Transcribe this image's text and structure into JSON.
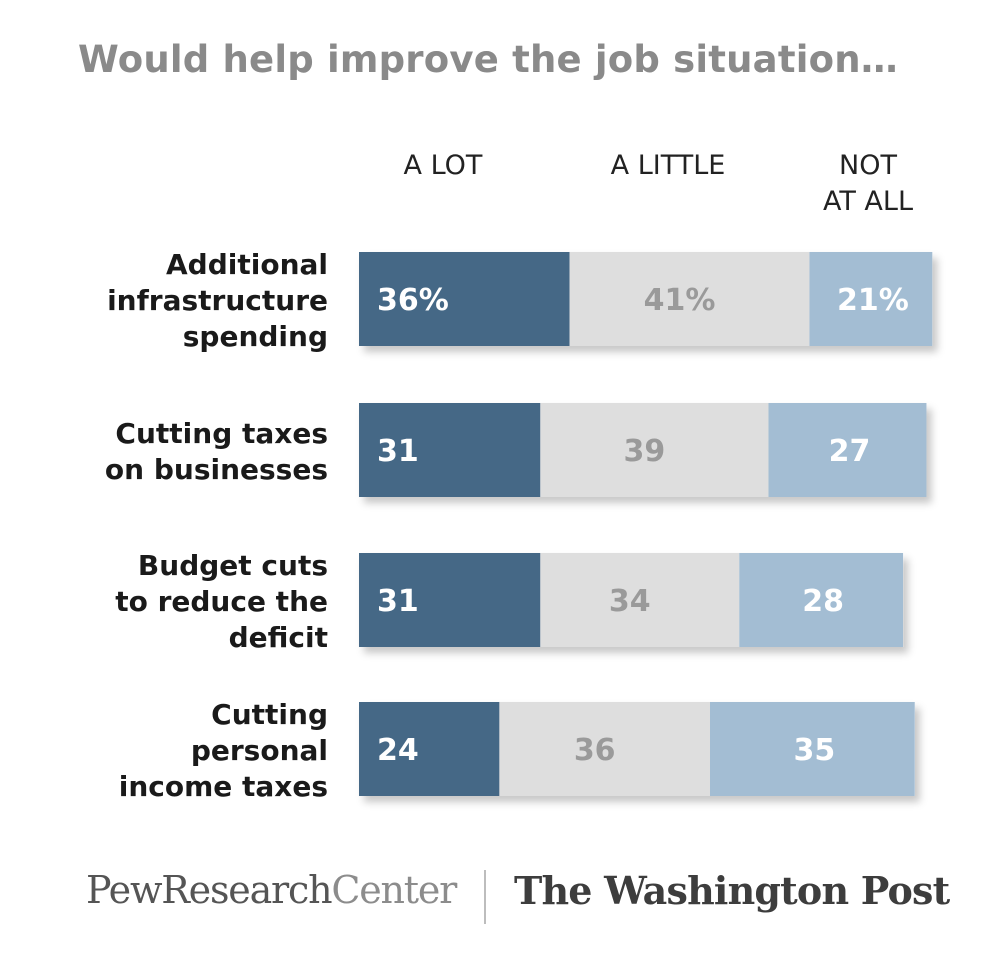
{
  "chart_data": {
    "type": "bar",
    "orientation": "horizontal",
    "stacked": true,
    "title": "Would help improve the job situation…",
    "categories": [
      [
        "Additional",
        "infrastructure",
        "spending"
      ],
      [
        "Cutting taxes",
        "on businesses"
      ],
      [
        "Budget cuts",
        "to reduce the",
        "deficit"
      ],
      [
        "Cutting",
        "personal",
        "income taxes"
      ]
    ],
    "series": [
      {
        "name": "A LOT",
        "header": [
          "A LOT"
        ],
        "values": [
          36,
          31,
          31,
          24
        ],
        "labels": [
          "36%",
          "31",
          "31",
          "24"
        ],
        "color": "#456886",
        "label_color": "#ffffff"
      },
      {
        "name": "A LITTLE",
        "header": [
          "A LITTLE"
        ],
        "values": [
          41,
          39,
          34,
          36
        ],
        "labels": [
          "41%",
          "39",
          "34",
          "36"
        ],
        "color": "#dedede",
        "label_color": "#9a9a9a"
      },
      {
        "name": "NOT AT ALL",
        "header": [
          "NOT",
          "AT ALL"
        ],
        "values": [
          21,
          27,
          28,
          35
        ],
        "labels": [
          "21%",
          "27",
          "28",
          "35"
        ],
        "color": "#a3bdd3",
        "label_color": "#ffffff"
      }
    ],
    "xlim": [
      0,
      100
    ],
    "grid": false,
    "legend": "top"
  },
  "footer": {
    "source_left_a": "PewResearch",
    "source_left_b": "Center",
    "source_right": "The Washington Post"
  }
}
